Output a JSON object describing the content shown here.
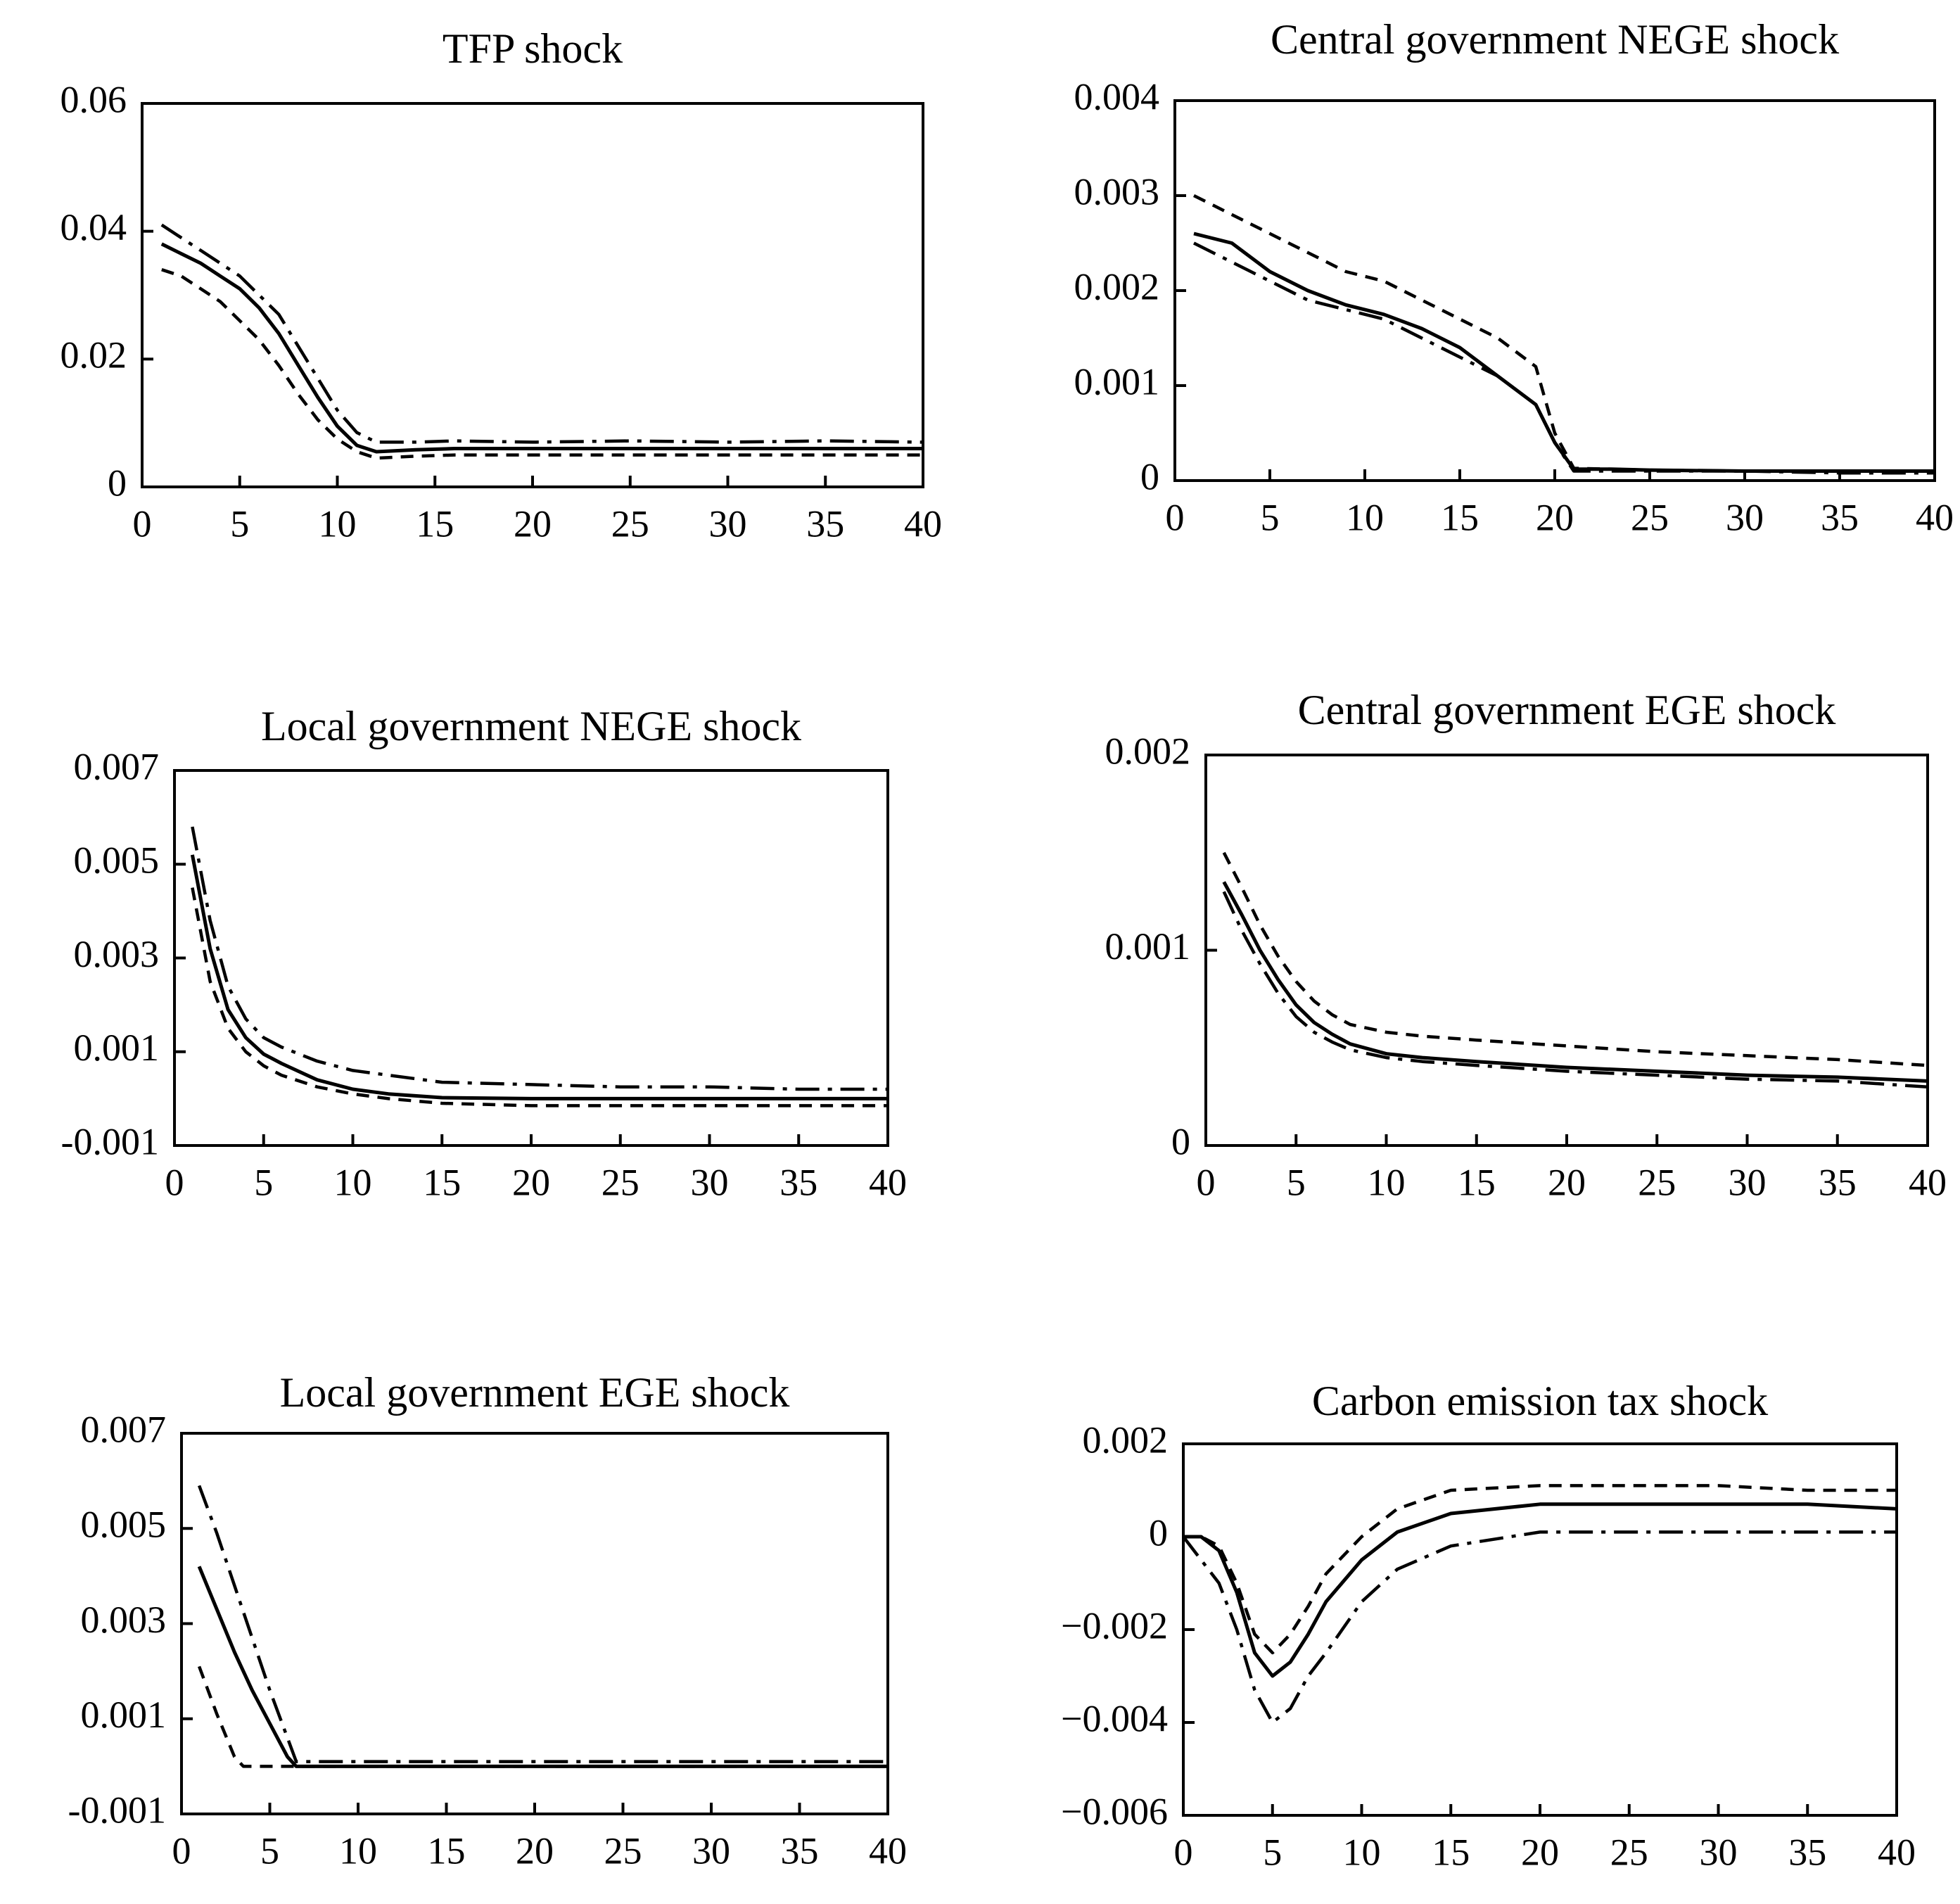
{
  "colors": {
    "line": "#000000",
    "background": "#ffffff"
  },
  "line_styles": {
    "solid": "",
    "dashed": "18 12",
    "dashdot": "34 12 6 12"
  },
  "chart_data": [
    {
      "type": "line",
      "title": "TFP shock",
      "xlabel": "",
      "ylabel": "",
      "xlim": [
        0,
        40
      ],
      "ylim": [
        0,
        0.06
      ],
      "xticks": [
        0,
        5,
        10,
        15,
        20,
        25,
        30,
        35,
        40
      ],
      "yticks": [
        0,
        0.02,
        0.04,
        0.06
      ],
      "yticklabels": [
        "0",
        "0.02",
        "0.04",
        "0.06"
      ],
      "grid": false,
      "series": [
        {
          "style": "solid",
          "x": [
            1,
            2,
            3,
            4,
            5,
            6,
            7,
            8,
            9,
            10,
            11,
            12,
            14,
            16,
            20,
            25,
            30,
            35,
            40
          ],
          "y": [
            0.038,
            0.0365,
            0.035,
            0.033,
            0.031,
            0.028,
            0.024,
            0.019,
            0.014,
            0.0095,
            0.0065,
            0.0055,
            0.0058,
            0.006,
            0.006,
            0.006,
            0.006,
            0.006,
            0.006
          ]
        },
        {
          "style": "dashed",
          "x": [
            1,
            2,
            3,
            4,
            5,
            6,
            7,
            8,
            9,
            10,
            11,
            12,
            14,
            16,
            20,
            25,
            30,
            35,
            40
          ],
          "y": [
            0.034,
            0.033,
            0.031,
            0.029,
            0.026,
            0.023,
            0.019,
            0.0145,
            0.0105,
            0.0075,
            0.0055,
            0.0045,
            0.0048,
            0.005,
            0.005,
            0.005,
            0.005,
            0.005,
            0.005
          ]
        },
        {
          "style": "dashdot",
          "x": [
            1,
            2,
            3,
            4,
            5,
            6,
            7,
            8,
            9,
            10,
            11,
            12,
            14,
            16,
            20,
            25,
            30,
            35,
            40
          ],
          "y": [
            0.041,
            0.039,
            0.037,
            0.035,
            0.033,
            0.03,
            0.027,
            0.022,
            0.017,
            0.012,
            0.0085,
            0.007,
            0.007,
            0.0072,
            0.007,
            0.0072,
            0.007,
            0.0072,
            0.007
          ]
        }
      ]
    },
    {
      "type": "line",
      "title": "Central government NEGE shock",
      "xlabel": "",
      "ylabel": "",
      "xlim": [
        0,
        40
      ],
      "ylim": [
        0,
        0.004
      ],
      "xticks": [
        0,
        5,
        10,
        15,
        20,
        25,
        30,
        35,
        40
      ],
      "yticks": [
        0,
        0.001,
        0.002,
        0.003,
        0.004
      ],
      "yticklabels": [
        "0",
        "0.001",
        "0.002",
        "0.003",
        "0.004"
      ],
      "grid": false,
      "series": [
        {
          "style": "solid",
          "x": [
            1,
            3,
            5,
            7,
            9,
            11,
            13,
            15,
            17,
            19,
            20,
            21,
            23,
            25,
            30,
            35,
            40
          ],
          "y": [
            0.0026,
            0.0025,
            0.0022,
            0.002,
            0.00185,
            0.00175,
            0.0016,
            0.0014,
            0.0011,
            0.0008,
            0.0004,
            0.00012,
            0.00012,
            0.00011,
            0.0001,
            0.0001,
            0.0001
          ]
        },
        {
          "style": "dashed",
          "x": [
            1,
            3,
            5,
            7,
            9,
            11,
            13,
            15,
            17,
            19,
            20,
            21,
            23,
            25,
            30,
            35,
            40
          ],
          "y": [
            0.003,
            0.0028,
            0.0026,
            0.0024,
            0.0022,
            0.0021,
            0.0019,
            0.0017,
            0.0015,
            0.0012,
            0.0005,
            0.00013,
            0.00012,
            0.00011,
            0.0001,
            0.0001,
            0.0001
          ]
        },
        {
          "style": "dashdot",
          "x": [
            1,
            3,
            5,
            7,
            9,
            11,
            13,
            15,
            17,
            19,
            20,
            21,
            23,
            25,
            30,
            35,
            40
          ],
          "y": [
            0.0025,
            0.0023,
            0.0021,
            0.0019,
            0.0018,
            0.0017,
            0.0015,
            0.0013,
            0.0011,
            0.0008,
            0.0004,
            0.0001,
            0.0001,
            0.0001,
            0.0001,
            8e-05,
            8e-05
          ]
        }
      ]
    },
    {
      "type": "line",
      "title": "Local government NEGE shock",
      "xlabel": "",
      "ylabel": "",
      "xlim": [
        0,
        40
      ],
      "ylim": [
        -0.001,
        0.007
      ],
      "xticks": [
        0,
        5,
        10,
        15,
        20,
        25,
        30,
        35,
        40
      ],
      "yticks": [
        -0.001,
        0.001,
        0.003,
        0.005,
        0.007
      ],
      "yticklabels": [
        "-0.001",
        "0.001",
        "0.003",
        "0.005",
        "0.007"
      ],
      "grid": false,
      "series": [
        {
          "style": "solid",
          "x": [
            1,
            2,
            3,
            4,
            5,
            6,
            8,
            10,
            12,
            15,
            20,
            25,
            30,
            35,
            40
          ],
          "y": [
            0.0052,
            0.0032,
            0.0019,
            0.0013,
            0.00095,
            0.00075,
            0.0004,
            0.0002,
            0.0001,
            2e-05,
            0.0,
            0.0,
            0.0,
            0.0,
            0.0
          ]
        },
        {
          "style": "dashed",
          "x": [
            1,
            2,
            3,
            4,
            5,
            6,
            8,
            10,
            12,
            15,
            20,
            25,
            30,
            35,
            40
          ],
          "y": [
            0.0045,
            0.0025,
            0.0015,
            0.001,
            0.0007,
            0.0005,
            0.00025,
            0.0001,
            0.0,
            -0.0001,
            -0.00015,
            -0.00015,
            -0.00015,
            -0.00015,
            -0.00015
          ]
        },
        {
          "style": "dashdot",
          "x": [
            1,
            2,
            3,
            4,
            5,
            6,
            8,
            10,
            12,
            15,
            20,
            25,
            30,
            35,
            40
          ],
          "y": [
            0.0058,
            0.0038,
            0.0024,
            0.0017,
            0.0013,
            0.0011,
            0.0008,
            0.0006,
            0.0005,
            0.00035,
            0.0003,
            0.00025,
            0.00025,
            0.0002,
            0.0002
          ]
        }
      ]
    },
    {
      "type": "line",
      "title": "Central government EGE shock",
      "xlabel": "",
      "ylabel": "",
      "xlim": [
        0,
        40
      ],
      "ylim": [
        0,
        0.002
      ],
      "xticks": [
        0,
        5,
        10,
        15,
        20,
        25,
        30,
        35,
        40
      ],
      "yticks": [
        0,
        0.001,
        0.002
      ],
      "yticklabels": [
        "0",
        "0.001",
        "0.002"
      ],
      "grid": false,
      "series": [
        {
          "style": "solid",
          "x": [
            1,
            2,
            3,
            4,
            5,
            6,
            7,
            8,
            10,
            12,
            15,
            20,
            25,
            30,
            35,
            40
          ],
          "y": [
            0.00135,
            0.00118,
            0.001,
            0.00085,
            0.00072,
            0.00063,
            0.00057,
            0.00052,
            0.00047,
            0.00045,
            0.00043,
            0.0004,
            0.00038,
            0.00036,
            0.00035,
            0.00033
          ]
        },
        {
          "style": "dashed",
          "x": [
            1,
            2,
            3,
            4,
            5,
            6,
            7,
            8,
            10,
            12,
            15,
            20,
            25,
            30,
            35,
            40
          ],
          "y": [
            0.0015,
            0.00132,
            0.00113,
            0.00097,
            0.00084,
            0.00074,
            0.00067,
            0.00062,
            0.00058,
            0.00056,
            0.00054,
            0.00051,
            0.00048,
            0.00046,
            0.00044,
            0.00041
          ]
        },
        {
          "style": "dashdot",
          "x": [
            1,
            2,
            3,
            4,
            5,
            6,
            7,
            8,
            10,
            12,
            15,
            20,
            25,
            30,
            35,
            40
          ],
          "y": [
            0.0013,
            0.0011,
            0.00093,
            0.00078,
            0.00066,
            0.00058,
            0.00053,
            0.00049,
            0.00045,
            0.00043,
            0.00041,
            0.00038,
            0.00036,
            0.00034,
            0.00033,
            0.0003
          ]
        }
      ]
    },
    {
      "type": "line",
      "title": "Local government EGE shock",
      "xlabel": "",
      "ylabel": "",
      "xlim": [
        0,
        40
      ],
      "ylim": [
        -0.001,
        0.007
      ],
      "xticks": [
        0,
        5,
        10,
        15,
        20,
        25,
        30,
        35,
        40
      ],
      "yticks": [
        -0.001,
        0.001,
        0.003,
        0.005,
        0.007
      ],
      "yticklabels": [
        "-0.001",
        "0.001",
        "0.003",
        "0.005",
        "0.007"
      ],
      "grid": false,
      "series": [
        {
          "style": "solid",
          "x": [
            1,
            2,
            3,
            4,
            5,
            6,
            6.5,
            8,
            10,
            15,
            20,
            25,
            30,
            35,
            40
          ],
          "y": [
            0.0042,
            0.0033,
            0.0024,
            0.0016,
            0.0009,
            0.0002,
            0.0,
            0.0,
            0.0,
            0.0,
            0.0,
            0.0,
            0.0,
            0.0,
            0.0
          ]
        },
        {
          "style": "dashed",
          "x": [
            1,
            2,
            3,
            3.5,
            4,
            5,
            6,
            8,
            10,
            15,
            20,
            25,
            30,
            35,
            40
          ],
          "y": [
            0.0021,
            0.0011,
            0.0002,
            0.0,
            0.0,
            0.0,
            0.0,
            0.0,
            0.0,
            0.0,
            0.0,
            0.0,
            0.0,
            0.0,
            0.0
          ]
        },
        {
          "style": "dashdot",
          "x": [
            1,
            2,
            3,
            4,
            5,
            6,
            6.5,
            8,
            10,
            15,
            20,
            25,
            30,
            35,
            40
          ],
          "y": [
            0.0059,
            0.0049,
            0.0038,
            0.0027,
            0.0016,
            0.0006,
            0.0001,
            0.0001,
            0.0001,
            0.0001,
            0.0001,
            0.0001,
            0.0001,
            0.0001,
            0.0001
          ]
        }
      ]
    },
    {
      "type": "line",
      "title": "Carbon emission tax shock",
      "xlabel": "",
      "ylabel": "",
      "xlim": [
        0,
        40
      ],
      "ylim": [
        -0.006,
        0.002
      ],
      "xticks": [
        0,
        5,
        10,
        15,
        20,
        25,
        30,
        35,
        40
      ],
      "yticks": [
        -0.006,
        -0.004,
        -0.002,
        0,
        0.002
      ],
      "yticklabels": [
        "−0.006",
        "−0.004",
        "−0.002",
        "0",
        "0.002"
      ],
      "grid": false,
      "series": [
        {
          "style": "solid",
          "x": [
            0,
            1,
            2,
            3,
            4,
            5,
            6,
            7,
            8,
            10,
            12,
            15,
            20,
            25,
            30,
            35,
            40
          ],
          "y": [
            0.0,
            0.0,
            -0.0003,
            -0.0012,
            -0.0025,
            -0.003,
            -0.0027,
            -0.0021,
            -0.0014,
            -0.0005,
            0.0001,
            0.0005,
            0.0007,
            0.0007,
            0.0007,
            0.0007,
            0.0006
          ]
        },
        {
          "style": "dashed",
          "x": [
            0,
            1,
            2,
            3,
            4,
            5,
            6,
            7,
            8,
            10,
            12,
            15,
            20,
            25,
            30,
            35,
            40
          ],
          "y": [
            0.0,
            0.0,
            -0.0002,
            -0.001,
            -0.0021,
            -0.0025,
            -0.0021,
            -0.0015,
            -0.0008,
            0.0,
            0.0006,
            0.001,
            0.0011,
            0.0011,
            0.0011,
            0.001,
            0.001
          ]
        },
        {
          "style": "dashdot",
          "x": [
            0,
            1,
            2,
            3,
            4,
            5,
            6,
            7,
            8,
            10,
            12,
            15,
            20,
            25,
            30,
            35,
            40
          ],
          "y": [
            0.0,
            -0.0005,
            -0.001,
            -0.002,
            -0.0033,
            -0.004,
            -0.0037,
            -0.003,
            -0.0025,
            -0.0014,
            -0.0007,
            -0.0002,
            0.0001,
            0.0001,
            0.0001,
            0.0001,
            0.0001
          ]
        }
      ]
    }
  ]
}
